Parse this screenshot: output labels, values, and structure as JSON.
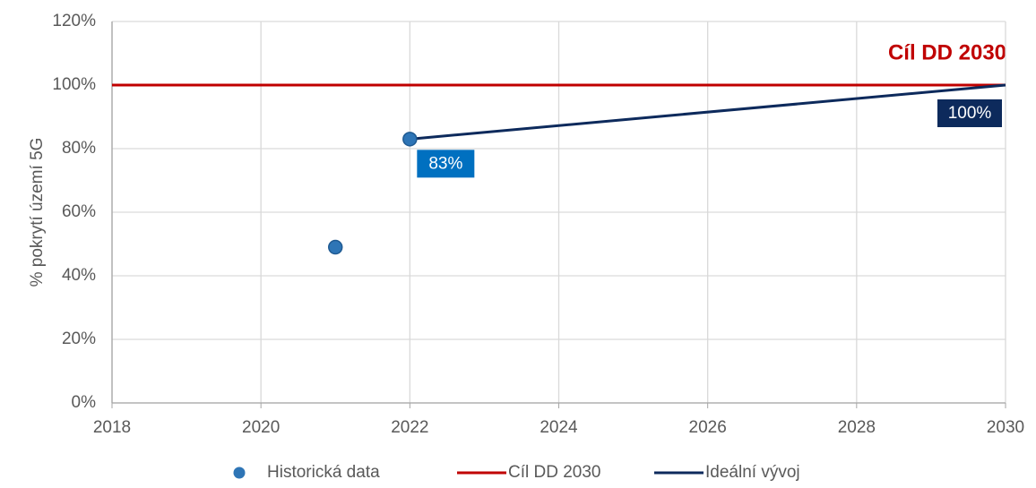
{
  "chart_data": {
    "type": "scatter",
    "y_label": "% pokrytí území 5G",
    "annotation": "Cíl DD 2030",
    "annotation_color": "#c00000",
    "xlim": [
      2018,
      2030
    ],
    "xticks": [
      2018,
      2020,
      2022,
      2024,
      2026,
      2028,
      2030
    ],
    "ylim": [
      0,
      120
    ],
    "yticks": [
      {
        "value": 0,
        "label": "0%"
      },
      {
        "value": 20,
        "label": "20%"
      },
      {
        "value": 40,
        "label": "40%"
      },
      {
        "value": 60,
        "label": "60%"
      },
      {
        "value": 80,
        "label": "80%"
      },
      {
        "value": 100,
        "label": "100%"
      },
      {
        "value": 120,
        "label": "120%"
      }
    ],
    "grid": true,
    "legend": "bottom",
    "series": [
      {
        "name": "Historická  data",
        "type": "scatter",
        "color": "#2e75b6",
        "label_color": "#0070c0",
        "x": [
          2021,
          2022
        ],
        "values": [
          49,
          83
        ],
        "value_labels": [
          null,
          "83%"
        ]
      },
      {
        "name": "Cíl DD 2030",
        "type": "line",
        "color": "#c00000",
        "x": [
          2018,
          2030
        ],
        "values": [
          100,
          100
        ]
      },
      {
        "name": "Ideální vývoj",
        "type": "line",
        "color": "#0d2a5c",
        "label_color": "#0d2a5c",
        "x": [
          2022,
          2030
        ],
        "values": [
          83,
          100
        ],
        "value_labels": [
          null,
          "100%"
        ]
      }
    ]
  }
}
